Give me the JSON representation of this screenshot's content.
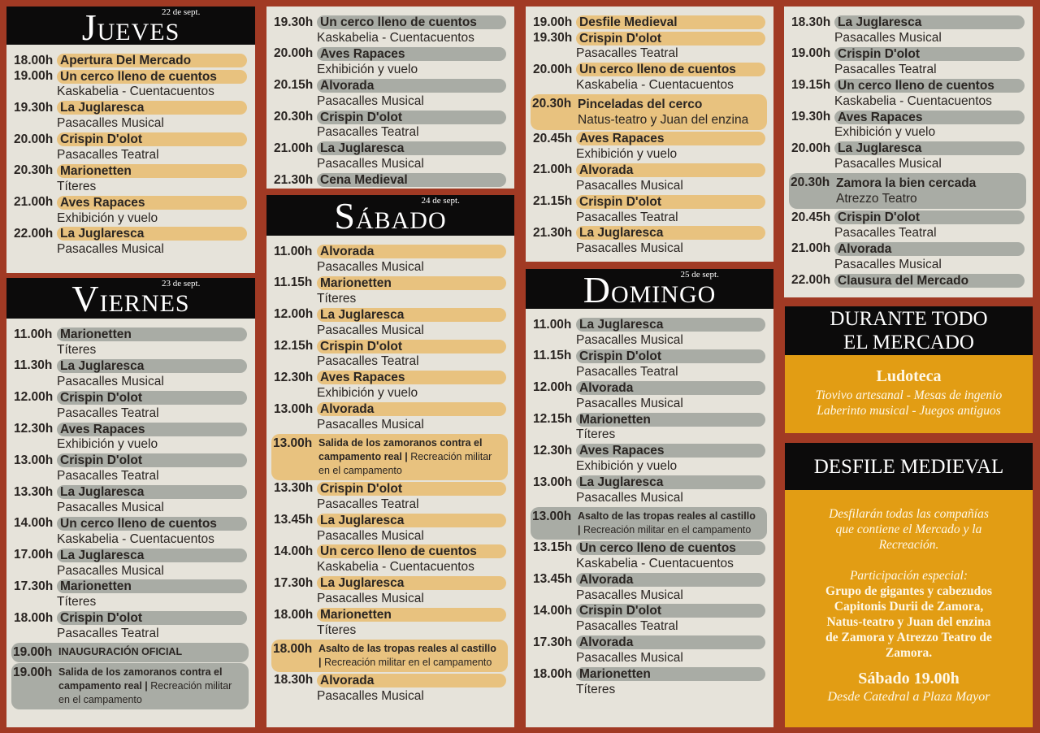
{
  "colors": {
    "background": "#a13a24",
    "panel": "#e6e3da",
    "gold_pill": "#e8c27f",
    "grey_pill": "#a9aca5",
    "info_box": "#e29d14",
    "header": "#0c0b0b"
  },
  "days": [
    {
      "id": "jueves",
      "initial": "J",
      "rest": "UEVES",
      "date": "22 de sept.",
      "pill": "gold"
    },
    {
      "id": "viernes",
      "initial": "V",
      "rest": "IERNES",
      "date": "23 de sept.",
      "pill": "grey"
    },
    {
      "id": "sabado",
      "initial": "S",
      "rest": "ÁBADO",
      "date": "24 de sept.",
      "pill": "gold"
    },
    {
      "id": "domingo",
      "initial": "D",
      "rest": "OMINGO",
      "date": "25 de sept.",
      "pill": "grey"
    }
  ],
  "panels": [
    {
      "day": 0,
      "items": [
        {
          "time": "18.00h",
          "title": "Apertura Del Mercado"
        },
        {
          "time": "19.00h",
          "title": "Un cerco lleno de cuentos",
          "sub": "Kaskabelia - Cuentacuentos"
        },
        {
          "time": "19.30h",
          "title": "La Juglaresca",
          "sub": "Pasacalles Musical"
        },
        {
          "time": "20.00h",
          "title": "Crispin D'olot",
          "sub": "Pasacalles Teatral"
        },
        {
          "time": "20.30h",
          "title": "Marionetten",
          "sub": "Títeres"
        },
        {
          "time": "21.00h",
          "title": "Aves Rapaces",
          "sub": "Exhibición y vuelo"
        },
        {
          "time": "22.00h",
          "title": "La Juglaresca",
          "sub": "Pasacalles Musical"
        }
      ]
    },
    {
      "day": 1,
      "items": [
        {
          "time": "11.00h",
          "title": "Marionetten",
          "sub": "Títeres"
        },
        {
          "time": "11.30h",
          "title": "La Juglaresca",
          "sub": "Pasacalles Musical"
        },
        {
          "time": "12.00h",
          "title": "Crispin D'olot",
          "sub": "Pasacalles Teatral"
        },
        {
          "time": "12.30h",
          "title": "Aves Rapaces",
          "sub": "Exhibición y vuelo"
        },
        {
          "time": "13.00h",
          "title": "Crispin D'olot",
          "sub": "Pasacalles Teatral"
        },
        {
          "time": "13.30h",
          "title": "La Juglaresca",
          "sub": "Pasacalles Musical"
        },
        {
          "time": "14.00h",
          "title": "Un cerco lleno de cuentos",
          "sub": "Kaskabelia - Cuentacuentos"
        },
        {
          "time": "17.00h",
          "title": "La Juglaresca",
          "sub": "Pasacalles Musical"
        },
        {
          "time": "17.30h",
          "title": "Marionetten",
          "sub": "Títeres"
        },
        {
          "time": "18.00h",
          "title": "Crispin D'olot",
          "sub": "Pasacalles Teatral"
        },
        {
          "time": "19.00h",
          "title": "INAUGURACIÓN OFICIAL",
          "box": "small"
        },
        {
          "time": "19.00h",
          "title": "Salida de los zamoranos contra el campamento real |",
          "sub": "Recreación militar en el campamento",
          "box": "small"
        }
      ]
    },
    {
      "day": 1,
      "items": [
        {
          "time": "19.30h",
          "title": "Un cerco lleno de cuentos",
          "sub": "Kaskabelia - Cuentacuentos"
        },
        {
          "time": "20.00h",
          "title": "Aves Rapaces",
          "sub": "Exhibición y vuelo"
        },
        {
          "time": "20.15h",
          "title": "Alvorada",
          "sub": "Pasacalles Musical"
        },
        {
          "time": "20.30h",
          "title": "Crispin D'olot",
          "sub": "Pasacalles Teatral"
        },
        {
          "time": "21.00h",
          "title": "La Juglaresca",
          "sub": "Pasacalles Musical"
        },
        {
          "time": "21.30h",
          "title": "Cena Medieval"
        }
      ]
    },
    {
      "day": 2,
      "items": [
        {
          "time": "11.00h",
          "title": "Alvorada",
          "sub": "Pasacalles Musical"
        },
        {
          "time": "11.15h",
          "title": "Marionetten",
          "sub": "Títeres"
        },
        {
          "time": "12.00h",
          "title": "La Juglaresca",
          "sub": "Pasacalles Musical"
        },
        {
          "time": "12.15h",
          "title": "Crispin D'olot",
          "sub": "Pasacalles Teatral"
        },
        {
          "time": "12.30h",
          "title": "Aves Rapaces",
          "sub": "Exhibición y vuelo"
        },
        {
          "time": "13.00h",
          "title": "Alvorada",
          "sub": "Pasacalles Musical"
        },
        {
          "time": "13.00h",
          "title": "Salida de los zamoranos contra el campamento real |",
          "sub": "Recreación militar en el campamento",
          "box": "small"
        },
        {
          "time": "13.30h",
          "title": "Crispin D'olot",
          "sub": "Pasacalles Teatral"
        },
        {
          "time": "13.45h",
          "title": "La Juglaresca",
          "sub": "Pasacalles Musical"
        },
        {
          "time": "14.00h",
          "title": "Un cerco lleno de cuentos",
          "sub": "Kaskabelia - Cuentacuentos"
        },
        {
          "time": "17.30h",
          "title": "La Juglaresca",
          "sub": "Pasacalles Musical"
        },
        {
          "time": "18.00h",
          "title": "Marionetten",
          "sub": "Títeres"
        },
        {
          "time": "18.00h",
          "title": "Asalto de las tropas reales al castillo |",
          "sub": "Recreación militar en el campamento",
          "box": "small"
        },
        {
          "time": "18.30h",
          "title": "Alvorada",
          "sub": "Pasacalles Musical"
        }
      ]
    },
    {
      "day": 2,
      "items": [
        {
          "time": "19.00h",
          "title": "Desfile Medieval"
        },
        {
          "time": "19.30h",
          "title": "Crispin D'olot",
          "sub": "Pasacalles Teatral"
        },
        {
          "time": "20.00h",
          "title": "Un cerco lleno de cuentos",
          "sub": "Kaskabelia - Cuentacuentos"
        },
        {
          "time": "20.30h",
          "title": "Pinceladas del cerco",
          "sub": "Natus-teatro y Juan del enzina",
          "box": "two"
        },
        {
          "time": "20.45h",
          "title": "Aves Rapaces",
          "sub": "Exhibición y vuelo"
        },
        {
          "time": "21.00h",
          "title": "Alvorada",
          "sub": "Pasacalles Musical"
        },
        {
          "time": "21.15h",
          "title": "Crispin D'olot",
          "sub": "Pasacalles Teatral"
        },
        {
          "time": "21.30h",
          "title": "La Juglaresca",
          "sub": "Pasacalles Musical"
        }
      ]
    },
    {
      "day": 3,
      "items": [
        {
          "time": "11.00h",
          "title": "La Juglaresca",
          "sub": "Pasacalles Musical"
        },
        {
          "time": "11.15h",
          "title": "Crispin D'olot",
          "sub": "Pasacalles Teatral"
        },
        {
          "time": "12.00h",
          "title": "Alvorada",
          "sub": "Pasacalles Musical"
        },
        {
          "time": "12.15h",
          "title": "Marionetten",
          "sub": "Títeres"
        },
        {
          "time": "12.30h",
          "title": "Aves Rapaces",
          "sub": "Exhibición y vuelo"
        },
        {
          "time": "13.00h",
          "title": "La Juglaresca",
          "sub": "Pasacalles Musical"
        },
        {
          "time": "13.00h",
          "title": "Asalto de las tropas reales al castillo |",
          "sub": "Recreación militar en el campamento",
          "box": "small"
        },
        {
          "time": "13.15h",
          "title": "Un cerco lleno de cuentos",
          "sub": "Kaskabelia - Cuentacuentos"
        },
        {
          "time": "13.45h",
          "title": "Alvorada",
          "sub": "Pasacalles Musical"
        },
        {
          "time": "14.00h",
          "title": "Crispin D'olot",
          "sub": "Pasacalles Teatral"
        },
        {
          "time": "17.30h",
          "title": "Alvorada",
          "sub": "Pasacalles Musical"
        },
        {
          "time": "18.00h",
          "title": "Marionetten",
          "sub": "Títeres"
        }
      ]
    },
    {
      "day": 3,
      "items": [
        {
          "time": "18.30h",
          "title": "La Juglaresca",
          "sub": "Pasacalles Musical"
        },
        {
          "time": "19.00h",
          "title": "Crispin D'olot",
          "sub": "Pasacalles Teatral"
        },
        {
          "time": "19.15h",
          "title": "Un cerco lleno de cuentos",
          "sub": "Kaskabelia - Cuentacuentos"
        },
        {
          "time": "19.30h",
          "title": "Aves Rapaces",
          "sub": "Exhibición y vuelo"
        },
        {
          "time": "20.00h",
          "title": "La Juglaresca",
          "sub": "Pasacalles Musical"
        },
        {
          "time": "20.30h",
          "title": "Zamora la bien cercada",
          "sub": "Atrezzo Teatro",
          "box": "two"
        },
        {
          "time": "20.45h",
          "title": "Crispin D'olot",
          "sub": "Pasacalles Teatral"
        },
        {
          "time": "21.00h",
          "title": "Alvorada",
          "sub": "Pasacalles Musical"
        },
        {
          "time": "22.00h",
          "title": "Clausura del Mercado"
        }
      ]
    }
  ],
  "durante": {
    "title1": "DURANTE TODO",
    "title2": "EL MERCADO",
    "heading": "Ludoteca",
    "line1": "Tiovivo artesanal - Mesas de ingenio",
    "line2": "Laberinto musical - Juegos antiguos"
  },
  "desfile": {
    "title": "DESFILE MEDIEVAL",
    "intro": [
      "Desfilarán todas las compañías",
      "que contiene el Mercado y la",
      "Recreación."
    ],
    "special_label": "Participación especial:",
    "special": [
      "Grupo de gigantes y cabezudos",
      "Capitonis Durii de Zamora,",
      "Natus-teatro y Juan del enzina",
      "de Zamora y Atrezzo Teatro de",
      "Zamora."
    ],
    "when": "Sábado 19.00h",
    "route": "Desde Catedral a Plaza Mayor"
  }
}
